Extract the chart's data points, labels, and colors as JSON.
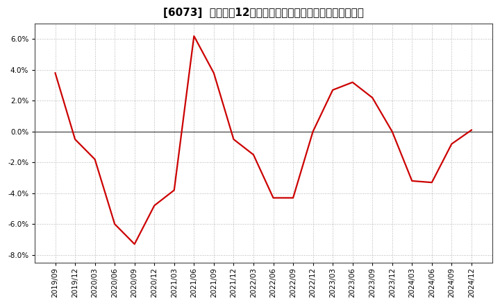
{
  "title": "[6073]  売上高の12か月移動合計の対前年同期増減率の推移",
  "line_color": "#cc0000",
  "background_color": "#ffffff",
  "grid_color": "#999999",
  "zero_line_color": "#555555",
  "ylim": [
    -0.085,
    0.07
  ],
  "yticks": [
    -0.08,
    -0.06,
    -0.04,
    -0.02,
    0.0,
    0.02,
    0.04,
    0.06
  ],
  "dates": [
    "2019/09",
    "2019/12",
    "2020/03",
    "2020/06",
    "2020/09",
    "2020/12",
    "2021/03",
    "2021/06",
    "2021/09",
    "2021/12",
    "2022/03",
    "2022/06",
    "2022/09",
    "2022/12",
    "2023/03",
    "2023/06",
    "2023/09",
    "2023/12",
    "2024/03",
    "2024/06",
    "2024/09",
    "2024/12"
  ],
  "values": [
    0.038,
    -0.005,
    -0.018,
    -0.06,
    -0.073,
    -0.048,
    -0.038,
    0.062,
    0.038,
    -0.005,
    -0.015,
    -0.043,
    -0.043,
    0.0,
    0.027,
    0.032,
    0.022,
    0.0,
    -0.032,
    -0.033,
    -0.008,
    0.001
  ],
  "title_fontsize": 11,
  "tick_fontsize": 7.5,
  "line_width": 1.6
}
